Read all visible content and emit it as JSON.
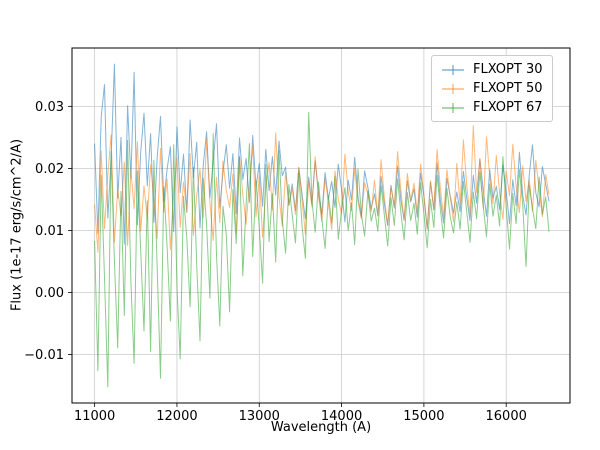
{
  "figure": {
    "background": "#ffffff",
    "grid_color": "#cccccc",
    "spine_color": "#000000",
    "tick_color": "#000000"
  },
  "chart_data": {
    "type": "line",
    "title": "",
    "xlabel": "Wavelength (A)",
    "ylabel": "Flux (1e-17 erg/s/cm^2/A)",
    "xlim": [
      10725,
      16775
    ],
    "ylim": [
      -0.0178,
      0.0394
    ],
    "xticks": [
      11000,
      12000,
      13000,
      14000,
      15000,
      16000
    ],
    "xtick_labels": [
      "11000",
      "12000",
      "13000",
      "14000",
      "15000",
      "16000"
    ],
    "yticks": [
      -0.01,
      0.0,
      0.01,
      0.02,
      0.03
    ],
    "ytick_labels": [
      "−0.01",
      "0.00",
      "0.01",
      "0.02",
      "0.03"
    ],
    "grid": true,
    "legend_position": "upper right",
    "x_start": 11000,
    "x_step": 40,
    "y_unit_scale": 0.001,
    "series": [
      {
        "name": "FLXOPT 30",
        "color": "#1f77b4",
        "alpha": 0.55,
        "values_1e3": [
          24.0,
          9.5,
          28.3,
          33.5,
          12.0,
          21.5,
          36.8,
          15.2,
          25.0,
          7.8,
          30.1,
          18.4,
          35.5,
          10.9,
          22.6,
          28.9,
          17.2,
          25.6,
          11.3,
          21.8,
          28.4,
          14.7,
          19.9,
          23.5,
          9.8,
          26.7,
          16.1,
          22.3,
          12.9,
          27.8,
          18.5,
          24.2,
          10.4,
          20.6,
          25.9,
          15.3,
          21.1,
          27.2,
          13.6,
          19.4,
          23.8,
          16.8,
          22.4,
          12.7,
          24.9,
          18.2,
          21.6,
          14.5,
          25.3,
          17.0,
          20.8,
          13.9,
          23.1,
          16.4,
          21.9,
          15.7,
          24.4,
          18.8,
          20.2,
          14.1,
          17.5,
          13.2,
          20.1,
          15.8,
          11.9,
          18.6,
          14.3,
          21.2,
          16.0,
          12.6,
          19.3,
          15.1,
          17.9,
          13.7,
          20.7,
          16.5,
          11.4,
          18.1,
          14.9,
          21.8,
          15.4,
          12.2,
          19.6,
          16.9,
          13.5,
          15.9,
          12.4,
          18.7,
          14.2,
          10.8,
          17.3,
          13.6,
          20.4,
          15.0,
          11.7,
          18.0,
          14.6,
          16.7,
          12.1,
          19.2,
          15.5,
          10.3,
          17.8,
          13.3,
          20.9,
          14.8,
          11.2,
          18.4,
          15.6,
          12.8,
          16.2,
          13.0,
          19.5,
          15.3,
          11.6,
          18.9,
          14.4,
          21.5,
          16.6,
          12.3,
          19.8,
          15.2,
          17.1,
          13.4,
          20.5,
          16.3,
          11.1,
          18.2,
          14.0,
          22.6,
          15.7,
          12.5,
          19.0,
          23.8,
          16.1,
          13.8,
          20.3,
          17.4,
          14.7
        ]
      },
      {
        "name": "FLXOPT 50",
        "color": "#ff7f0e",
        "alpha": 0.55,
        "values_1e3": [
          14.2,
          6.5,
          22.8,
          10.3,
          18.9,
          25.4,
          8.1,
          16.6,
          12.4,
          21.0,
          7.6,
          19.7,
          13.5,
          24.3,
          9.9,
          17.2,
          11.8,
          20.6,
          15.1,
          8.7,
          23.2,
          12.9,
          18.3,
          6.9,
          16.0,
          21.7,
          10.5,
          17.8,
          13.1,
          22.4,
          9.2,
          15.6,
          19.9,
          12.0,
          24.8,
          14.5,
          8.4,
          18.6,
          11.3,
          21.2,
          16.4,
          13.7,
          19.1,
          9.6,
          22.0,
          15.8,
          11.0,
          17.5,
          23.6,
          12.2,
          18.8,
          8.9,
          16.9,
          20.9,
          13.3,
          25.7,
          15.4,
          10.7,
          19.4,
          14.0,
          16.7,
          12.6,
          20.2,
          14.9,
          9.4,
          17.9,
          13.8,
          21.9,
          15.5,
          11.5,
          18.5,
          14.4,
          10.1,
          19.6,
          15.0,
          12.7,
          22.3,
          16.2,
          13.2,
          20.0,
          14.6,
          11.9,
          17.7,
          15.9,
          13.0,
          18.1,
          12.3,
          21.4,
          15.2,
          10.9,
          17.0,
          13.9,
          22.7,
          16.5,
          11.6,
          19.2,
          14.8,
          17.6,
          12.8,
          20.7,
          15.7,
          10.2,
          18.0,
          13.4,
          23.0,
          16.8,
          12.1,
          19.8,
          15.3,
          11.4,
          20.8,
          14.1,
          24.6,
          17.3,
          12.5,
          26.9,
          16.1,
          21.6,
          13.6,
          25.1,
          18.7,
          14.3,
          22.1,
          16.0,
          11.8,
          19.5,
          15.6,
          23.9,
          17.1,
          12.9,
          20.4,
          14.7,
          18.2,
          13.1,
          21.3,
          16.6,
          12.2,
          19.0,
          15.8
        ]
      },
      {
        "name": "FLXOPT 67",
        "color": "#2ca02c",
        "alpha": 0.55,
        "values_1e3": [
          8.3,
          -12.6,
          18.9,
          2.4,
          -15.2,
          22.7,
          5.1,
          -8.9,
          16.3,
          -3.7,
          24.5,
          1.8,
          -11.4,
          19.6,
          6.7,
          -6.2,
          14.8,
          -9.5,
          21.3,
          3.9,
          -13.8,
          17.0,
          7.4,
          -4.6,
          23.8,
          0.6,
          -10.7,
          15.5,
          8.8,
          -2.3,
          20.2,
          4.5,
          -7.8,
          18.4,
          10.9,
          -0.9,
          25.6,
          6.0,
          -5.4,
          13.9,
          9.3,
          -3.1,
          16.6,
          7.9,
          21.8,
          2.7,
          14.1,
          24.0,
          5.8,
          18.0,
          10.4,
          1.5,
          20.6,
          8.2,
          15.9,
          4.9,
          22.9,
          11.7,
          6.3,
          17.4,
          12.5,
          8.0,
          19.3,
          10.6,
          5.5,
          29.0,
          14.9,
          9.7,
          17.8,
          12.0,
          7.1,
          15.6,
          11.2,
          18.7,
          8.6,
          13.4,
          16.9,
          10.0,
          14.5,
          7.7,
          19.9,
          12.8,
          9.1,
          16.4,
          11.5,
          13.6,
          9.9,
          17.2,
          12.4,
          7.5,
          15.3,
          10.8,
          18.3,
          13.0,
          8.5,
          16.1,
          11.6,
          14.4,
          9.4,
          17.7,
          12.7,
          7.2,
          15.0,
          10.5,
          18.9,
          13.3,
          8.8,
          16.8,
          12.2,
          9.6,
          14.6,
          10.2,
          17.9,
          13.1,
          8.1,
          16.2,
          11.9,
          19.4,
          14.0,
          9.0,
          17.5,
          12.3,
          15.7,
          10.7,
          21.9,
          13.8,
          7.0,
          16.0,
          11.1,
          19.8,
          14.2,
          4.2,
          17.3,
          13.5,
          10.3,
          18.6,
          12.6,
          15.4,
          9.8
        ]
      }
    ]
  }
}
